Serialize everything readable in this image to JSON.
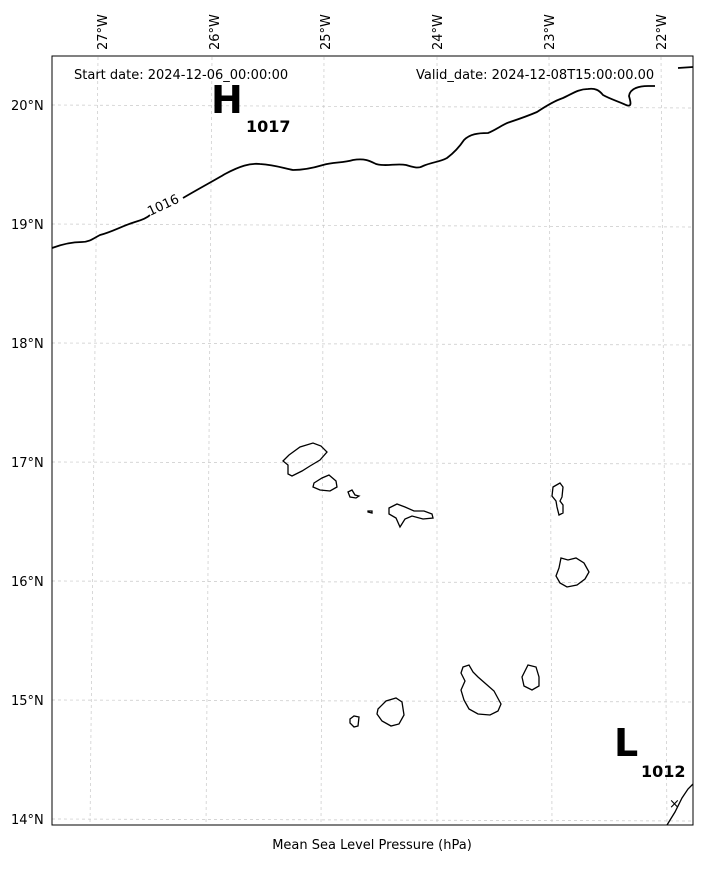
{
  "map": {
    "start_date": "Start date: 2024-12-06_00:00:00",
    "valid_date": "Valid_date: 2024-12-08T15:00:00.00",
    "colorbar_label": "Mean Sea Level Pressure (hPa)",
    "lon_ticks": [
      "27°W",
      "26°W",
      "25°W",
      "24°W",
      "23°W",
      "22°W"
    ],
    "lat_ticks": [
      "20°N",
      "19°N",
      "18°N",
      "17°N",
      "16°N",
      "15°N",
      "14°N"
    ],
    "isobar_label": "1016",
    "high": {
      "letter": "H",
      "value": "1017"
    },
    "low": {
      "letter": "L",
      "value": "1012"
    },
    "low_marker": "×"
  }
}
